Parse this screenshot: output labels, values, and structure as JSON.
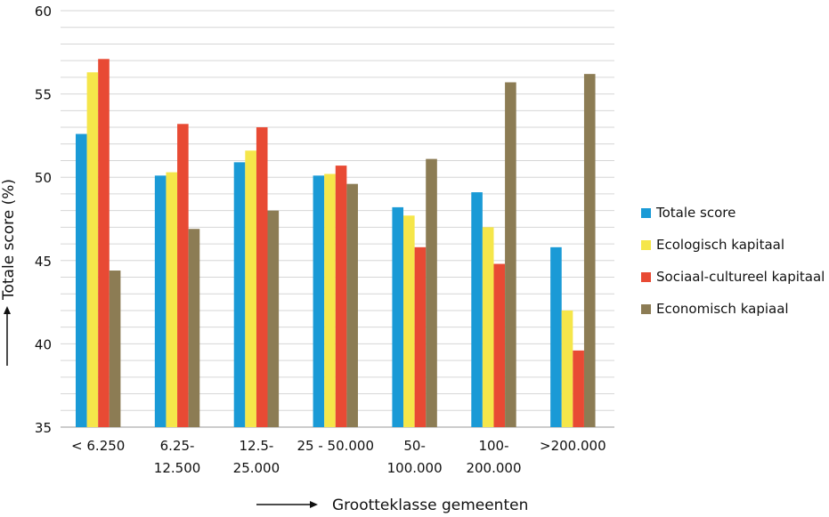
{
  "chart_data": {
    "type": "bar",
    "xlabel": "Grootteklasse gemeenten",
    "ylabel": "Totale score (%)",
    "ylim": [
      35,
      60
    ],
    "yticks": [
      35,
      40,
      45,
      50,
      55,
      60
    ],
    "grid": true,
    "legend_position": "right",
    "categories": [
      [
        "< 6.250"
      ],
      [
        "6.25-",
        "12.500"
      ],
      [
        "12.5-",
        "25.000"
      ],
      [
        "25 - 50.000"
      ],
      [
        "50-",
        "100.000"
      ],
      [
        "100-",
        "200.000"
      ],
      [
        ">200.000"
      ]
    ],
    "series": [
      {
        "name": "Totale score",
        "color": "#1a9ad6",
        "values": [
          52.6,
          50.1,
          50.9,
          50.1,
          48.2,
          49.1,
          45.8
        ]
      },
      {
        "name": "Ecologisch kapitaal",
        "color": "#f5e64a",
        "values": [
          56.3,
          50.3,
          51.6,
          50.2,
          47.7,
          47.0,
          42.0
        ]
      },
      {
        "name": "Sociaal-cultureel kapitaal",
        "color": "#e84a34",
        "values": [
          57.1,
          53.2,
          53.0,
          50.7,
          45.8,
          44.8,
          39.6
        ]
      },
      {
        "name": "Economisch kapiaal",
        "color": "#8c7c54",
        "values": [
          44.4,
          46.9,
          48.0,
          49.6,
          51.1,
          55.7,
          56.2
        ]
      }
    ]
  }
}
